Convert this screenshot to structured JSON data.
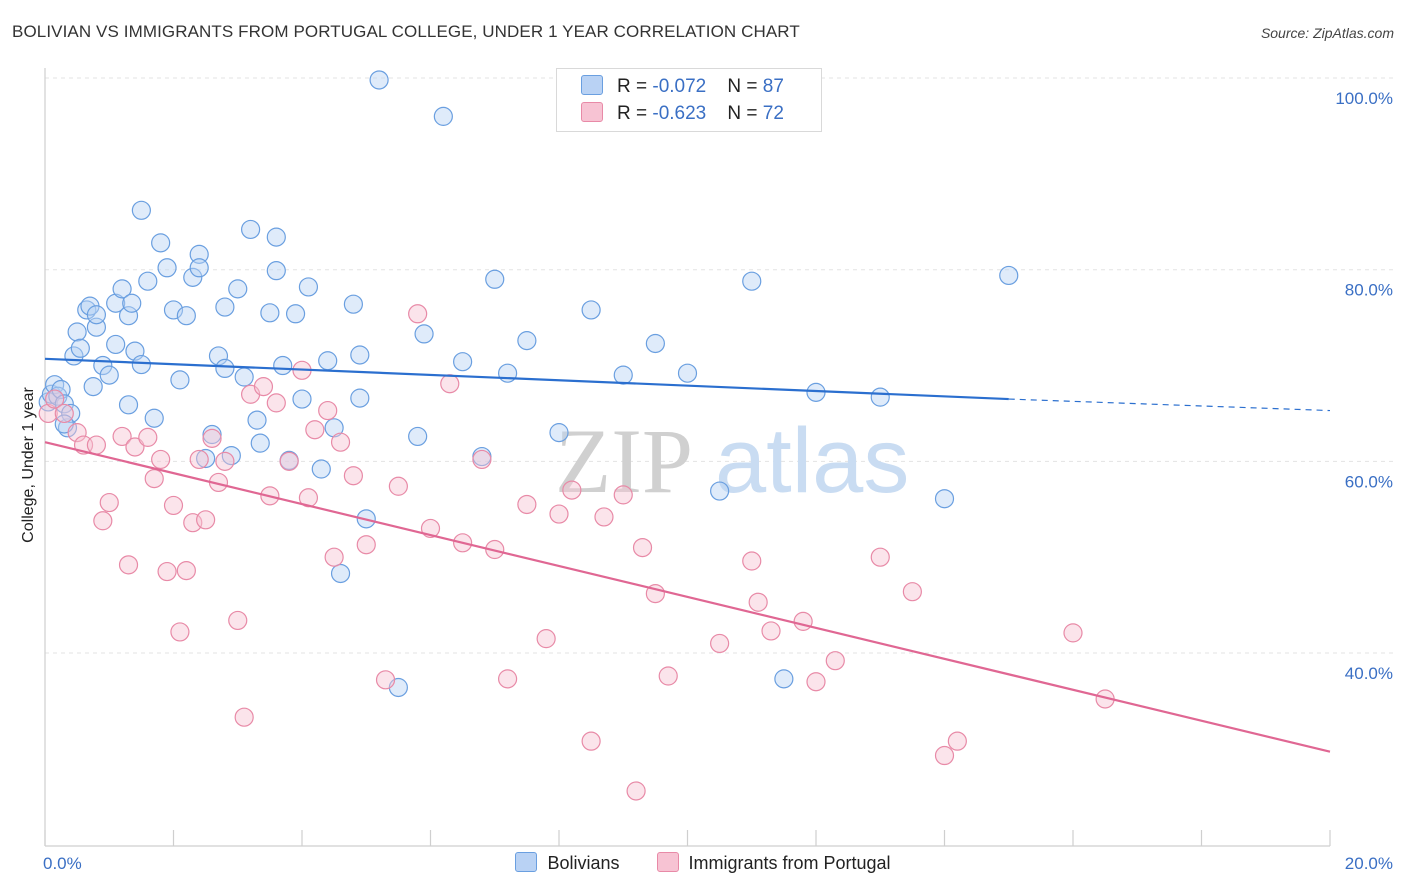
{
  "title": "BOLIVIAN VS IMMIGRANTS FROM PORTUGAL COLLEGE, UNDER 1 YEAR CORRELATION CHART",
  "source": "Source: ZipAtlas.com",
  "watermark": {
    "zip": "ZIP",
    "atlas": "atlas"
  },
  "colors": {
    "blue": "#6a9fe0",
    "blue_fill": "#b9d2f4",
    "blue_line": "#2b6fcf",
    "pink": "#e88aa7",
    "pink_fill": "#f7c3d3",
    "pink_line": "#e06793"
  },
  "legend_top": [
    {
      "r_label": "R = ",
      "r_value": "-0.072",
      "n_label": "N = ",
      "n_value": "87"
    },
    {
      "r_label": "R = ",
      "r_value": "-0.623",
      "n_label": "N = ",
      "n_value": "72"
    }
  ],
  "chart_data": {
    "type": "scatter",
    "title": "BOLIVIAN VS IMMIGRANTS FROM PORTUGAL COLLEGE, UNDER 1 YEAR CORRELATION CHART",
    "xlabel": "",
    "ylabel": "College, Under 1 year",
    "xlim": [
      0,
      20
    ],
    "ylim": [
      20,
      101
    ],
    "x_tick_labels": [
      "0.0%",
      "20.0%"
    ],
    "y_ticks": [
      40,
      60,
      80,
      100
    ],
    "y_tick_labels": [
      "40.0%",
      "60.0%",
      "80.0%",
      "100.0%"
    ],
    "grid": true,
    "legend_position": "bottom",
    "series": [
      {
        "name": "Bolivians",
        "color": "#6a9fe0",
        "trend": {
          "x0": 0,
          "y0": 70.7,
          "x1": 15,
          "y1": 66.5,
          "dashed_to_x": 20,
          "dashed_to_y": 65.3
        },
        "points": [
          [
            0.05,
            66.2
          ],
          [
            0.1,
            67.0
          ],
          [
            0.15,
            68.0
          ],
          [
            0.2,
            66.8
          ],
          [
            0.25,
            67.5
          ],
          [
            0.3,
            66.0
          ],
          [
            0.35,
            63.5
          ],
          [
            0.4,
            65.0
          ],
          [
            0.45,
            71.0
          ],
          [
            0.5,
            73.5
          ],
          [
            0.55,
            71.8
          ],
          [
            0.65,
            75.8
          ],
          [
            0.7,
            76.2
          ],
          [
            0.75,
            67.8
          ],
          [
            0.8,
            74.0
          ],
          [
            0.9,
            70.0
          ],
          [
            1.0,
            69.0
          ],
          [
            1.1,
            76.5
          ],
          [
            1.2,
            78.0
          ],
          [
            1.3,
            75.2
          ],
          [
            1.35,
            76.5
          ],
          [
            1.4,
            71.5
          ],
          [
            1.5,
            86.2
          ],
          [
            1.6,
            78.8
          ],
          [
            1.7,
            64.5
          ],
          [
            1.8,
            82.8
          ],
          [
            1.9,
            80.2
          ],
          [
            2.0,
            75.8
          ],
          [
            2.1,
            68.5
          ],
          [
            2.2,
            75.2
          ],
          [
            2.3,
            79.2
          ],
          [
            2.4,
            81.6
          ],
          [
            2.5,
            60.3
          ],
          [
            2.6,
            62.8
          ],
          [
            2.7,
            71.0
          ],
          [
            2.8,
            76.1
          ],
          [
            2.9,
            60.6
          ],
          [
            3.0,
            78.0
          ],
          [
            3.1,
            68.8
          ],
          [
            3.2,
            84.2
          ],
          [
            3.3,
            64.3
          ],
          [
            3.35,
            61.9
          ],
          [
            3.5,
            75.5
          ],
          [
            3.6,
            83.4
          ],
          [
            3.7,
            70.0
          ],
          [
            3.8,
            60.1
          ],
          [
            3.9,
            75.4
          ],
          [
            4.0,
            66.5
          ],
          [
            4.1,
            78.2
          ],
          [
            4.3,
            59.2
          ],
          [
            4.4,
            70.5
          ],
          [
            4.5,
            63.5
          ],
          [
            4.6,
            48.3
          ],
          [
            4.8,
            76.4
          ],
          [
            4.9,
            71.1
          ],
          [
            5.0,
            54.0
          ],
          [
            5.2,
            99.8
          ],
          [
            5.5,
            36.4
          ],
          [
            5.8,
            62.6
          ],
          [
            5.9,
            73.3
          ],
          [
            6.2,
            96.0
          ],
          [
            6.5,
            70.4
          ],
          [
            7.0,
            79.0
          ],
          [
            7.2,
            69.2
          ],
          [
            7.5,
            72.6
          ],
          [
            8.0,
            63.0
          ],
          [
            8.5,
            75.8
          ],
          [
            9.5,
            72.3
          ],
          [
            9.0,
            69.0
          ],
          [
            10.0,
            69.2
          ],
          [
            11.0,
            78.8
          ],
          [
            11.5,
            37.3
          ],
          [
            12.0,
            67.2
          ],
          [
            13.0,
            66.7
          ],
          [
            14.0,
            56.1
          ],
          [
            15.0,
            79.4
          ],
          [
            3.6,
            79.9
          ],
          [
            2.4,
            80.2
          ],
          [
            1.5,
            70.1
          ],
          [
            0.8,
            75.3
          ],
          [
            0.3,
            63.9
          ],
          [
            1.3,
            65.9
          ],
          [
            2.8,
            69.7
          ],
          [
            4.9,
            66.6
          ],
          [
            6.8,
            60.5
          ],
          [
            10.5,
            56.9
          ],
          [
            1.1,
            72.2
          ]
        ]
      },
      {
        "name": "Immigrants from Portugal",
        "color": "#e88aa7",
        "trend": {
          "x0": 0,
          "y0": 62.0,
          "x1": 20,
          "y1": 29.7
        },
        "points": [
          [
            0.05,
            65.0
          ],
          [
            0.15,
            66.5
          ],
          [
            0.3,
            65.0
          ],
          [
            0.5,
            63.0
          ],
          [
            0.6,
            61.7
          ],
          [
            0.8,
            61.7
          ],
          [
            0.9,
            53.8
          ],
          [
            1.0,
            55.7
          ],
          [
            1.2,
            62.6
          ],
          [
            1.3,
            49.2
          ],
          [
            1.4,
            61.5
          ],
          [
            1.6,
            62.5
          ],
          [
            1.7,
            58.2
          ],
          [
            1.8,
            60.2
          ],
          [
            1.9,
            48.5
          ],
          [
            2.0,
            55.4
          ],
          [
            2.1,
            42.2
          ],
          [
            2.2,
            48.6
          ],
          [
            2.3,
            53.6
          ],
          [
            2.5,
            53.9
          ],
          [
            2.6,
            62.4
          ],
          [
            2.7,
            57.8
          ],
          [
            2.8,
            60.0
          ],
          [
            3.0,
            43.4
          ],
          [
            3.1,
            33.3
          ],
          [
            3.2,
            67.0
          ],
          [
            3.4,
            67.8
          ],
          [
            3.5,
            56.4
          ],
          [
            3.6,
            66.1
          ],
          [
            3.8,
            60.0
          ],
          [
            4.0,
            69.5
          ],
          [
            4.1,
            56.2
          ],
          [
            4.2,
            63.3
          ],
          [
            4.4,
            65.3
          ],
          [
            4.5,
            50.0
          ],
          [
            4.6,
            62.0
          ],
          [
            4.8,
            58.5
          ],
          [
            5.0,
            51.3
          ],
          [
            5.3,
            37.2
          ],
          [
            5.5,
            57.4
          ],
          [
            5.8,
            75.4
          ],
          [
            6.0,
            53.0
          ],
          [
            6.3,
            68.1
          ],
          [
            6.5,
            51.5
          ],
          [
            6.8,
            60.2
          ],
          [
            7.0,
            50.8
          ],
          [
            7.2,
            37.3
          ],
          [
            7.5,
            55.5
          ],
          [
            7.8,
            41.5
          ],
          [
            8.0,
            54.5
          ],
          [
            8.2,
            57.0
          ],
          [
            8.5,
            30.8
          ],
          [
            8.7,
            54.2
          ],
          [
            9.0,
            56.5
          ],
          [
            9.2,
            25.6
          ],
          [
            9.3,
            51.0
          ],
          [
            9.5,
            46.2
          ],
          [
            9.7,
            37.6
          ],
          [
            10.5,
            41.0
          ],
          [
            11.0,
            49.6
          ],
          [
            11.1,
            45.3
          ],
          [
            11.3,
            42.3
          ],
          [
            11.8,
            43.3
          ],
          [
            12.0,
            37.0
          ],
          [
            12.3,
            39.2
          ],
          [
            13.0,
            50.0
          ],
          [
            13.5,
            46.4
          ],
          [
            14.0,
            29.3
          ],
          [
            14.2,
            30.8
          ],
          [
            16.0,
            42.1
          ],
          [
            16.5,
            35.2
          ],
          [
            2.4,
            60.2
          ]
        ]
      }
    ]
  },
  "legend_bottom": [
    "Bolivians",
    "Immigrants from Portugal"
  ]
}
